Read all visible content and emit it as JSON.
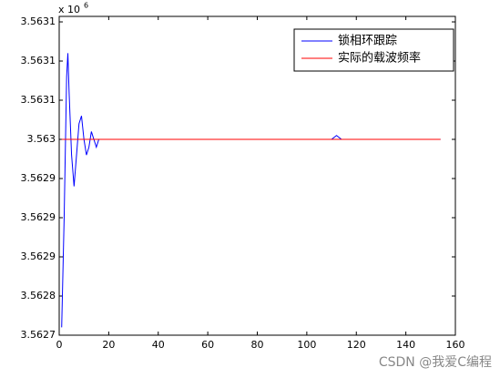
{
  "chart_data": {
    "type": "line",
    "y_exponent_label": "x 10",
    "y_exponent": "6",
    "x": [
      1,
      2,
      3,
      3.5,
      4,
      5,
      6,
      7,
      8,
      9,
      10,
      11,
      12,
      13,
      14,
      15,
      16,
      18,
      20,
      30,
      40,
      50,
      60,
      70,
      80,
      90,
      100,
      110,
      112,
      114,
      120,
      130,
      140,
      150,
      154
    ],
    "series": [
      {
        "name": "锁相环跟踪",
        "color": "#0000ff",
        "values": [
          3.56276,
          3.5629,
          3.56308,
          3.56311,
          3.56306,
          3.56298,
          3.56294,
          3.56298,
          3.56302,
          3.56303,
          3.563,
          3.56298,
          3.56299,
          3.56301,
          3.563,
          3.56299,
          3.563,
          3.563,
          3.563,
          3.563,
          3.563,
          3.563,
          3.563,
          3.563,
          3.563,
          3.563,
          3.563,
          3.563,
          3.563005,
          3.563,
          3.563,
          3.563,
          3.563,
          3.563,
          3.563
        ]
      },
      {
        "name": "实际的载波频率",
        "color": "#ff0000",
        "values": [
          3.563,
          3.563,
          3.563,
          3.563,
          3.563,
          3.563,
          3.563,
          3.563,
          3.563,
          3.563,
          3.563,
          3.563,
          3.563,
          3.563,
          3.563,
          3.563,
          3.563,
          3.563,
          3.563,
          3.563,
          3.563,
          3.563,
          3.563,
          3.563,
          3.563,
          3.563,
          3.563,
          3.563,
          3.563,
          3.563,
          3.563,
          3.563,
          3.563,
          3.563,
          3.563
        ]
      }
    ],
    "xlim": [
      0,
      160
    ],
    "xticks": [
      0,
      20,
      40,
      60,
      80,
      100,
      120,
      140,
      160
    ],
    "ylim": [
      3.56275,
      3.563157
    ],
    "yticks": [
      {
        "value": 3.56275,
        "label": "3.5627"
      },
      {
        "value": 3.5628,
        "label": "3.5628"
      },
      {
        "value": 3.56285,
        "label": "3.5629"
      },
      {
        "value": 3.5629,
        "label": "3.5629"
      },
      {
        "value": 3.56295,
        "label": "3.5629"
      },
      {
        "value": 3.563,
        "label": "3.563"
      },
      {
        "value": 3.56305,
        "label": "3.5631"
      },
      {
        "value": 3.5631,
        "label": "3.5631"
      },
      {
        "value": 3.56315,
        "label": "3.5631"
      }
    ],
    "grid": false,
    "legend": "top-right"
  },
  "watermark": "CSDN @我爱C编程"
}
